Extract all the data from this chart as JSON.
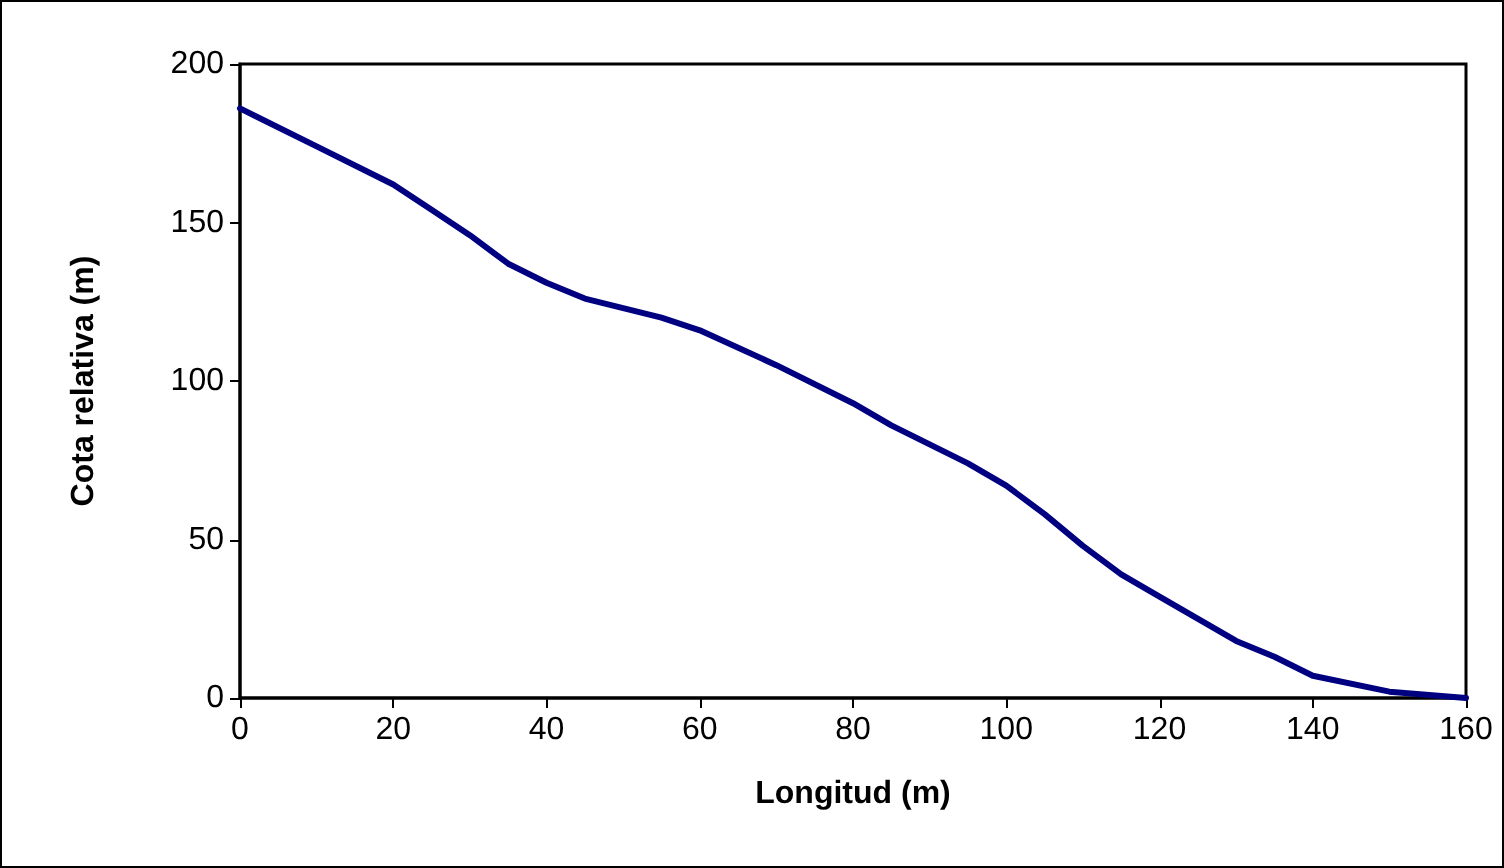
{
  "chart_data": {
    "type": "line",
    "xlabel": "Longitud (m)",
    "ylabel": "Cota relativa (m)",
    "x": [
      0,
      10,
      20,
      25,
      30,
      35,
      40,
      45,
      50,
      55,
      60,
      70,
      80,
      85,
      90,
      95,
      100,
      105,
      110,
      115,
      120,
      130,
      135,
      140,
      150,
      160
    ],
    "series": [
      {
        "color": "#000080",
        "values": [
          186,
          174,
          162,
          154,
          146,
          137,
          131,
          126,
          123,
          120,
          116,
          105,
          93,
          86,
          80,
          74,
          67,
          58,
          48,
          39,
          32,
          18,
          13,
          7,
          2,
          0
        ]
      }
    ],
    "xlim": [
      0,
      160
    ],
    "xticks": [
      0,
      20,
      40,
      60,
      80,
      100,
      120,
      140,
      160
    ],
    "ylim": [
      0,
      200
    ],
    "yticks": [
      0,
      50,
      100,
      150,
      200
    ],
    "grid": false,
    "marker": "none",
    "line_style": "solid"
  }
}
